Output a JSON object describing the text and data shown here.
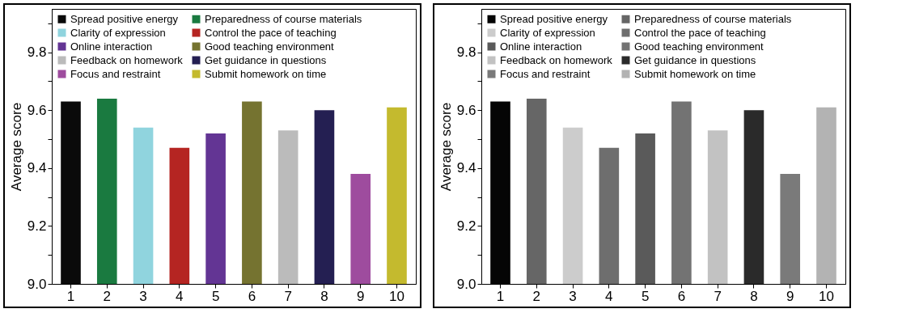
{
  "chart_data": [
    {
      "type": "bar",
      "ylabel": "Average score",
      "categories": [
        "1",
        "2",
        "3",
        "4",
        "5",
        "6",
        "7",
        "8",
        "9",
        "10"
      ],
      "ylim": [
        9.0,
        9.95
      ],
      "yticks": [
        {
          "value": 9.0,
          "label": "9.0"
        },
        {
          "value": 9.1,
          "label": null
        },
        {
          "value": 9.2,
          "label": "9.2"
        },
        {
          "value": 9.3,
          "label": null
        },
        {
          "value": 9.4,
          "label": "9.4"
        },
        {
          "value": 9.5,
          "label": null
        },
        {
          "value": 9.6,
          "label": "9.6"
        },
        {
          "value": 9.7,
          "label": null
        },
        {
          "value": 9.8,
          "label": "9.8"
        },
        {
          "value": 9.9,
          "label": null
        }
      ],
      "legend": "top",
      "grid": false,
      "series": [
        {
          "name": "Spread positive energy",
          "color": "#0a0a0a",
          "values": [
            9.63,
            null,
            null,
            null,
            null,
            null,
            null,
            null,
            null,
            null
          ]
        },
        {
          "name": "Preparedness of course materials",
          "color": "#1a7a40",
          "values": [
            null,
            9.64,
            null,
            null,
            null,
            null,
            null,
            null,
            null,
            null
          ]
        },
        {
          "name": "Clarity of expression",
          "color": "#90d4de",
          "values": [
            null,
            null,
            9.54,
            null,
            null,
            null,
            null,
            null,
            null,
            null
          ]
        },
        {
          "name": "Control the pace of teaching",
          "color": "#b52522",
          "values": [
            null,
            null,
            null,
            9.47,
            null,
            null,
            null,
            null,
            null,
            null
          ]
        },
        {
          "name": "Online interaction",
          "color": "#633594",
          "values": [
            null,
            null,
            null,
            null,
            9.52,
            null,
            null,
            null,
            null,
            null
          ]
        },
        {
          "name": "Good teaching environment",
          "color": "#757330",
          "values": [
            null,
            null,
            null,
            null,
            null,
            9.63,
            null,
            null,
            null,
            null
          ]
        },
        {
          "name": "Feedback on homework",
          "color": "#bbbbbb",
          "values": [
            null,
            null,
            null,
            null,
            null,
            null,
            9.53,
            null,
            null,
            null
          ]
        },
        {
          "name": "Get guidance in questions",
          "color": "#241f52",
          "values": [
            null,
            null,
            null,
            null,
            null,
            null,
            null,
            9.6,
            null,
            null
          ]
        },
        {
          "name": "Focus and restraint",
          "color": "#9e4c9e",
          "values": [
            null,
            null,
            null,
            null,
            null,
            null,
            null,
            null,
            9.38,
            null
          ]
        },
        {
          "name": "Submit homework on time",
          "color": "#c4ba2e",
          "values": [
            null,
            null,
            null,
            null,
            null,
            null,
            null,
            null,
            null,
            9.61
          ]
        }
      ]
    },
    {
      "type": "bar",
      "ylabel": "Average score",
      "categories": [
        "1",
        "2",
        "3",
        "4",
        "5",
        "6",
        "7",
        "8",
        "9",
        "10"
      ],
      "ylim": [
        9.0,
        9.95
      ],
      "yticks": [
        {
          "value": 9.0,
          "label": "9.0"
        },
        {
          "value": 9.1,
          "label": null
        },
        {
          "value": 9.2,
          "label": "9.2"
        },
        {
          "value": 9.3,
          "label": null
        },
        {
          "value": 9.4,
          "label": "9.4"
        },
        {
          "value": 9.5,
          "label": null
        },
        {
          "value": 9.6,
          "label": "9.6"
        },
        {
          "value": 9.7,
          "label": null
        },
        {
          "value": 9.8,
          "label": "9.8"
        },
        {
          "value": 9.9,
          "label": null
        }
      ],
      "legend": "top",
      "grid": false,
      "series": [
        {
          "name": "Spread positive energy",
          "color": "#050505",
          "values": [
            9.63,
            null,
            null,
            null,
            null,
            null,
            null,
            null,
            null,
            null
          ]
        },
        {
          "name": "Preparedness of course materials",
          "color": "#666666",
          "values": [
            null,
            9.64,
            null,
            null,
            null,
            null,
            null,
            null,
            null,
            null
          ]
        },
        {
          "name": "Clarity of expression",
          "color": "#cccccc",
          "values": [
            null,
            null,
            9.54,
            null,
            null,
            null,
            null,
            null,
            null,
            null
          ]
        },
        {
          "name": "Control the pace of teaching",
          "color": "#6e6e6e",
          "values": [
            null,
            null,
            null,
            9.47,
            null,
            null,
            null,
            null,
            null,
            null
          ]
        },
        {
          "name": "Online interaction",
          "color": "#5a5a5a",
          "values": [
            null,
            null,
            null,
            null,
            9.52,
            null,
            null,
            null,
            null,
            null
          ]
        },
        {
          "name": "Good teaching environment",
          "color": "#737373",
          "values": [
            null,
            null,
            null,
            null,
            null,
            9.63,
            null,
            null,
            null,
            null
          ]
        },
        {
          "name": "Feedback on homework",
          "color": "#c2c2c2",
          "values": [
            null,
            null,
            null,
            null,
            null,
            null,
            9.53,
            null,
            null,
            null
          ]
        },
        {
          "name": "Get guidance in questions",
          "color": "#2a2a2a",
          "values": [
            null,
            null,
            null,
            null,
            null,
            null,
            null,
            9.6,
            null,
            null
          ]
        },
        {
          "name": "Focus and restraint",
          "color": "#7a7a7a",
          "values": [
            null,
            null,
            null,
            null,
            null,
            null,
            null,
            null,
            9.38,
            null
          ]
        },
        {
          "name": "Submit homework on time",
          "color": "#b3b3b3",
          "values": [
            null,
            null,
            null,
            null,
            null,
            null,
            null,
            null,
            null,
            9.61
          ]
        }
      ]
    }
  ]
}
